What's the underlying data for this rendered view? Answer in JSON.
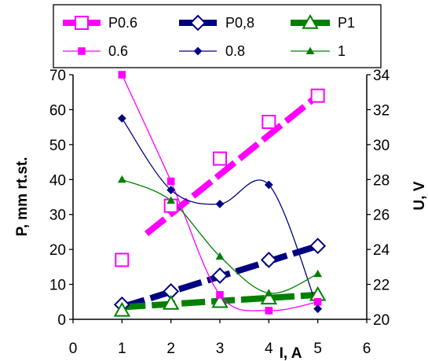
{
  "chart_data": {
    "type": "line",
    "x_axis": {
      "label": "I, A",
      "min": 0,
      "max": 6,
      "ticks": [
        "0",
        "1",
        "2",
        "3",
        "4",
        "5",
        "6"
      ]
    },
    "y_axis_left": {
      "label": "P, mm rt.st.",
      "min": 0,
      "max": 70,
      "ticks": [
        "0",
        "10",
        "20",
        "30",
        "40",
        "50",
        "60",
        "70"
      ]
    },
    "y_axis_right": {
      "label": "U, V",
      "min": 20,
      "max": 34,
      "ticks": [
        "20",
        "22",
        "24",
        "26",
        "28",
        "30",
        "32",
        "34"
      ]
    },
    "grid": {
      "vertical": false,
      "horizontal": false
    },
    "legend_position": "top",
    "series": [
      {
        "name": "P0.6",
        "axis": "left",
        "color": "#ff00ff",
        "marker": "open-square",
        "style": "thick-dashed",
        "x": [
          1,
          2,
          3,
          4,
          5
        ],
        "values": [
          17,
          32.5,
          46,
          56.5,
          64
        ],
        "fit": {
          "from": [
            1.5,
            24.5
          ],
          "to": [
            5,
            64
          ]
        }
      },
      {
        "name": "P0,8",
        "axis": "left",
        "color": "#000080",
        "marker": "open-diamond",
        "style": "thick-dashed",
        "x": [
          1,
          2,
          3,
          4,
          5
        ],
        "values": [
          4.2,
          8,
          12.5,
          17,
          21
        ],
        "fit": {
          "from": [
            1,
            3.5
          ],
          "to": [
            5,
            21
          ]
        }
      },
      {
        "name": "P1",
        "axis": "left",
        "color": "#008000",
        "marker": "open-triangle",
        "style": "thick-dashed",
        "x": [
          1,
          2,
          3,
          4,
          5
        ],
        "values": [
          2.5,
          4.5,
          5,
          6,
          7
        ],
        "fit": {
          "from": [
            1,
            3.5
          ],
          "to": [
            5,
            7
          ]
        }
      },
      {
        "name": "0.6",
        "axis": "right",
        "color": "#ff00ff",
        "marker": "filled-square",
        "style": "thin-smooth",
        "x": [
          1,
          2,
          3,
          4,
          5
        ],
        "values": [
          34,
          27.9,
          21.4,
          20.5,
          21
        ]
      },
      {
        "name": "0.8",
        "axis": "right",
        "color": "#000080",
        "marker": "filled-diamond",
        "style": "thin-smooth",
        "x": [
          1,
          2,
          3,
          4,
          5
        ],
        "values": [
          31.5,
          27.4,
          26.6,
          27.7,
          20.6
        ]
      },
      {
        "name": "1",
        "axis": "right",
        "color": "#008000",
        "marker": "filled-triangle",
        "style": "thin-smooth",
        "x": [
          1,
          2,
          3,
          4,
          5
        ],
        "values": [
          28,
          26.8,
          23.6,
          21.5,
          22.6
        ]
      }
    ]
  }
}
